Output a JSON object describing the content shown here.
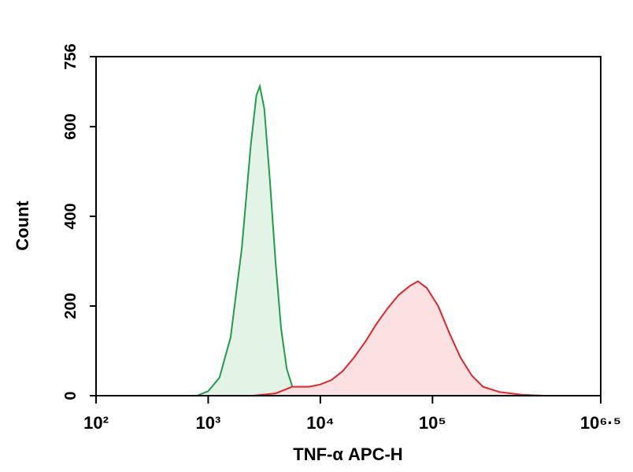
{
  "chart_data": {
    "type": "histogram-overlay",
    "xlabel": "TNF-α APC-H",
    "ylabel": "Count",
    "xscale": "log",
    "xlim": [
      100,
      3162278
    ],
    "ylim": [
      0,
      756
    ],
    "xticks": [
      {
        "value": 100,
        "label": "10²"
      },
      {
        "value": 1000,
        "label": "10³"
      },
      {
        "value": 10000,
        "label": "10⁴"
      },
      {
        "value": 100000,
        "label": "10⁵"
      },
      {
        "value": 3162278,
        "label": "10⁶·⁵"
      }
    ],
    "yticks": [
      0,
      200,
      400,
      600,
      756
    ],
    "series": [
      {
        "color": "#1f9e4a",
        "fill": "#e3f3e6",
        "x": [
          794,
          1000,
          1259,
          1585,
          1995,
          2399,
          2692,
          2884,
          3162,
          3548,
          3981,
          4467,
          5012,
          5623,
          6310,
          7079
        ],
        "values": [
          0,
          10,
          40,
          130,
          330,
          560,
          670,
          690,
          640,
          480,
          300,
          150,
          60,
          20,
          5,
          0
        ]
      },
      {
        "color": "#e0262b",
        "fill": "#fbe1e2",
        "x": [
          2512,
          3981,
          5623,
          7943,
          10000,
          12589,
          15849,
          19953,
          25119,
          31623,
          39811,
          50119,
          63096,
          74131,
          89125,
          112202,
          141254,
          177828,
          223872,
          281838,
          398107,
          630957,
          1000000
        ],
        "values": [
          0,
          5,
          20,
          20,
          25,
          35,
          55,
          85,
          120,
          160,
          195,
          225,
          245,
          255,
          240,
          200,
          140,
          85,
          45,
          20,
          8,
          2,
          0
        ]
      }
    ]
  }
}
